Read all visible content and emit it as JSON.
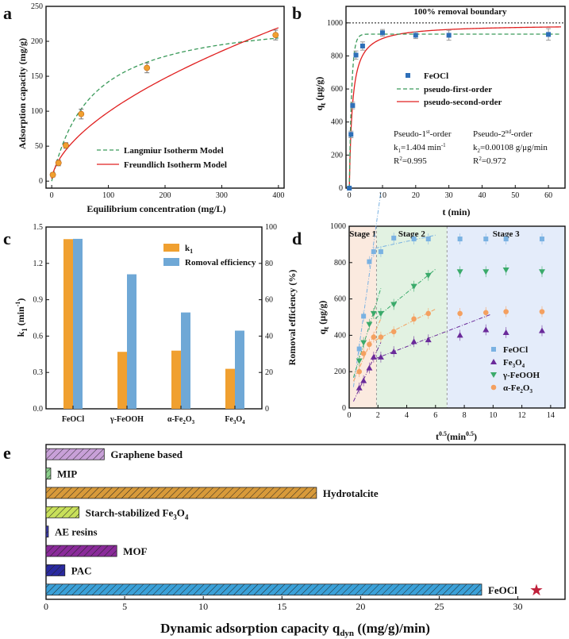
{
  "colors": {
    "orange": "#F0A030",
    "blue": "#6FA8D6",
    "green_dash": "#3A9A5A",
    "red": "#E02020",
    "sq_blue": "#2E6FB8",
    "purple": "#6A2A9A",
    "green_tri": "#3AAA6A",
    "light_orange": "#F4A060",
    "light_blue_sq": "#7AB2E2"
  },
  "chart_data": [
    {
      "panel": "a",
      "type": "scatter",
      "xlabel": "Equilibrium concentration (mg/L)",
      "ylabel": "Adsorption capacity (mg/g)",
      "xlim": [
        -10,
        410
      ],
      "ylim": [
        -10,
        250
      ],
      "xticks": [
        0,
        100,
        200,
        300,
        400
      ],
      "yticks": [
        0,
        50,
        100,
        150,
        200,
        250
      ],
      "points": {
        "x": [
          2,
          12,
          25,
          52,
          168,
          395
        ],
        "y": [
          9,
          26,
          51,
          96,
          162,
          209
        ],
        "err": [
          3,
          4,
          4,
          7,
          7,
          7
        ]
      },
      "series": [
        {
          "name": "Langmiur Isotherm Model",
          "style": "dashed"
        },
        {
          "name": "Freundlich Isotherm Model",
          "style": "solid"
        }
      ],
      "legend_position": "bottom-right"
    },
    {
      "panel": "b",
      "type": "scatter",
      "xlabel": "t (min)",
      "ylabel": "qt (μg/g)",
      "ylabel_main": "q",
      "ylabel_sub": "t",
      "ylabel_rest": " (μg/g)",
      "xlim": [
        -1,
        65
      ],
      "ylim": [
        0,
        1100
      ],
      "xticks": [
        0,
        10,
        20,
        30,
        40,
        50,
        60
      ],
      "yticks": [
        0,
        200,
        400,
        600,
        800,
        1000
      ],
      "points": {
        "x": [
          0,
          0.5,
          1,
          2,
          4,
          10,
          20,
          30,
          60
        ],
        "y": [
          0,
          325,
          500,
          805,
          860,
          940,
          925,
          925,
          930
        ],
        "err": [
          0,
          20,
          20,
          25,
          25,
          20,
          20,
          30,
          35
        ]
      },
      "boundary": {
        "y": 1000,
        "label": "100% removal boundary"
      },
      "series": [
        {
          "name": "FeOCl",
          "style": "marker"
        },
        {
          "name": "pseudo-first-order",
          "style": "dashed"
        },
        {
          "name": "pseudo-second-order",
          "style": "solid"
        }
      ],
      "annotations": {
        "first": [
          "Pseudo-1st-order",
          "k1=1.404 min-1",
          "R2=0.995"
        ],
        "second": [
          "Pseudo-2nd-order",
          "k2=0.00108 g/μg/min",
          "R2=0.972"
        ],
        "f1_pre": "Pseudo-1",
        "f1_sup": "st",
        "f1_post": "-order",
        "f2_pre": "k",
        "f2_sub": "1",
        "f2_mid": "=1.404 min",
        "f2_sup": "-1",
        "f3_pre": "R",
        "f3_sup": "2",
        "f3_post": "=0.995",
        "s1_pre": "Pseudo-2",
        "s1_sup": "nd",
        "s1_post": "-order",
        "s2_pre": "k",
        "s2_sub": "2",
        "s2_post": "=0.00108 g/μg/min",
        "s3_pre": "R",
        "s3_sup": "2",
        "s3_post": "=0.972"
      }
    },
    {
      "panel": "c",
      "type": "bar",
      "categories": [
        "FeOCl",
        "γ-FeOOH",
        "α-Fe2O3",
        "Fe3O4"
      ],
      "cat_main": [
        "FeOCl",
        "γ-FeOOH",
        "α-Fe",
        "Fe"
      ],
      "cat_sub1": [
        "",
        "",
        "2",
        "3"
      ],
      "cat_mid": [
        "",
        "",
        "O",
        "O"
      ],
      "cat_sub2": [
        "",
        "",
        "3",
        "4"
      ],
      "series": [
        {
          "name": "k1",
          "name_main": "k",
          "name_sub": "1",
          "axis": "left",
          "values": [
            1.4,
            0.47,
            0.48,
            0.33
          ]
        },
        {
          "name": "Romoval efficiency",
          "axis": "right",
          "values": [
            93.5,
            74,
            53,
            43
          ]
        }
      ],
      "ylabel_left_main": "k",
      "ylabel_left_sub": "1",
      "ylabel_left_rest": " (min",
      "ylabel_left_sup": "-1",
      "ylabel_left_end": ")",
      "ylabel_right": "Romoval efficiency (%)",
      "ylim_left": [
        0,
        1.5
      ],
      "ylim_right": [
        0,
        100
      ],
      "yticks_left": [
        "0.0",
        "0.3",
        "0.6",
        "0.9",
        "1.2",
        "1.5"
      ],
      "yticks_right": [
        0,
        20,
        40,
        60,
        80,
        100
      ]
    },
    {
      "panel": "d",
      "type": "scatter",
      "xlabel_main": "t",
      "xlabel_sup1": "0.5",
      "xlabel_mid": "(min",
      "xlabel_sup2": "0.5",
      "xlabel_end": ")",
      "ylabel_main": "q",
      "ylabel_sub": "t",
      "ylabel_rest": " (μg/g)",
      "xlim": [
        0,
        15
      ],
      "ylim": [
        0,
        1000
      ],
      "xticks": [
        0,
        2,
        4,
        6,
        8,
        10,
        12,
        14
      ],
      "yticks": [
        0,
        200,
        400,
        600,
        800,
        1000
      ],
      "stages": [
        {
          "label": "Stage 1",
          "from": 0,
          "to": 1.9,
          "color": "#FBEADF"
        },
        {
          "label": "Stage 2",
          "from": 1.9,
          "to": 6.8,
          "color": "#E2F2E2"
        },
        {
          "label": "Stage 3",
          "from": 6.8,
          "to": 15,
          "color": "#E4ECFA"
        }
      ],
      "x": [
        0.7,
        1.0,
        1.4,
        1.7,
        2.2,
        3.1,
        4.5,
        5.5,
        7.7,
        9.5,
        10.9,
        13.4
      ],
      "series": [
        {
          "name": "FeOCl",
          "marker": "square",
          "y": [
            325,
            505,
            805,
            860,
            860,
            935,
            930,
            930,
            930,
            930,
            930,
            930
          ]
        },
        {
          "name": "Fe3O4",
          "name_main": "Fe",
          "name_sub1": "3",
          "name_mid": "O",
          "name_sub2": "4",
          "marker": "triangle-up",
          "y": [
            110,
            150,
            220,
            280,
            280,
            310,
            365,
            375,
            400,
            430,
            415,
            425
          ]
        },
        {
          "name": "γ-FeOOH",
          "marker": "triangle-down",
          "y": [
            260,
            360,
            460,
            520,
            520,
            570,
            670,
            730,
            750,
            750,
            760,
            750
          ]
        },
        {
          "name": "α-Fe2O3",
          "name_main": "α-Fe",
          "name_sub1": "2",
          "name_mid": "O",
          "name_sub2": "3",
          "marker": "circle",
          "y": [
            200,
            300,
            350,
            390,
            390,
            420,
            490,
            520,
            520,
            525,
            530,
            530
          ]
        }
      ]
    },
    {
      "panel": "e",
      "type": "bar",
      "orientation": "horizontal",
      "xlabel_main": "Dynamic adsorption capacity q",
      "xlabel_sub": "dyn",
      "xlabel_end": " ((mg/g)/min)",
      "xlim": [
        0,
        33
      ],
      "xticks": [
        0,
        5,
        10,
        15,
        20,
        25,
        30
      ],
      "categories": [
        "Graphene based",
        "MIP",
        "Hydrotalcite",
        "Starch-stabilized Fe3O4",
        "AE resins",
        "MOF",
        "PAC",
        "FeOCl"
      ],
      "cat_main": [
        "Graphene based",
        "MIP",
        "Hydrotalcite",
        "Starch-stabilized Fe",
        "AE resins",
        "MOF",
        "PAC",
        "FeOCl"
      ],
      "cat_sub1": [
        "",
        "",
        "",
        "3",
        "",
        "",
        "",
        ""
      ],
      "cat_mid": [
        "",
        "",
        "",
        "O",
        "",
        "",
        "",
        ""
      ],
      "cat_sub2": [
        "",
        "",
        "",
        "4",
        "",
        "",
        "",
        ""
      ],
      "values": [
        3.7,
        0.3,
        17.2,
        2.1,
        0.15,
        4.5,
        1.2,
        27.7
      ],
      "bar_colors": [
        "#C8A0D8",
        "#8CD08C",
        "#D89A3A",
        "#C8E05A",
        "#3A3AB0",
        "#8A2A9A",
        "#2A2AA0",
        "#3AA0D8"
      ]
    }
  ],
  "panel_labels": [
    "a",
    "b",
    "c",
    "d",
    "e"
  ],
  "star": "★"
}
